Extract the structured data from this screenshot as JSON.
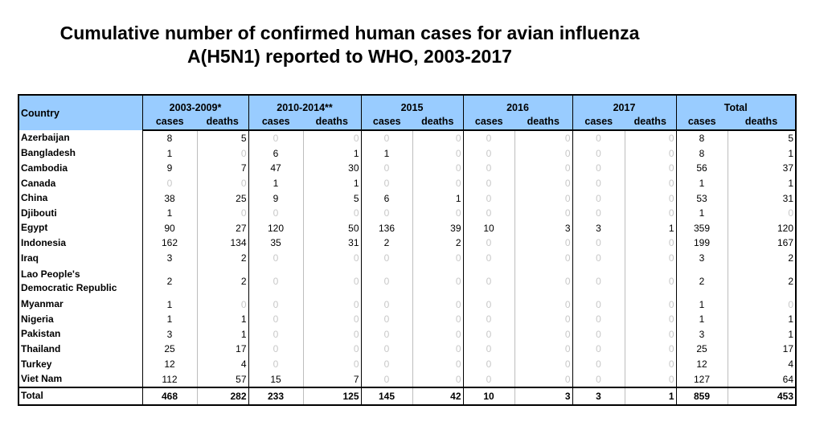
{
  "title_line1": "Cumulative number of confirmed human cases for avian influenza",
  "title_line2": "A(H5N1) reported to WHO, 2003-2017",
  "header": {
    "country": "Country",
    "periods": [
      "2003-2009*",
      "2010-2014**",
      "2015",
      "2016",
      "2017",
      "Total"
    ],
    "cases": "cases",
    "deaths": "deaths"
  },
  "rows": [
    {
      "country": "Azerbaijan",
      "values": [
        8,
        5,
        0,
        0,
        0,
        0,
        0,
        0,
        0,
        0,
        8,
        5
      ]
    },
    {
      "country": "Bangladesh",
      "values": [
        1,
        0,
        6,
        1,
        1,
        0,
        0,
        0,
        0,
        0,
        8,
        1
      ]
    },
    {
      "country": "Cambodia",
      "values": [
        9,
        7,
        47,
        30,
        0,
        0,
        0,
        0,
        0,
        0,
        56,
        37
      ]
    },
    {
      "country": "Canada",
      "values": [
        0,
        0,
        1,
        1,
        0,
        0,
        0,
        0,
        0,
        0,
        1,
        1
      ]
    },
    {
      "country": "China",
      "values": [
        38,
        25,
        9,
        5,
        6,
        1,
        0,
        0,
        0,
        0,
        53,
        31
      ]
    },
    {
      "country": "Djibouti",
      "values": [
        1,
        0,
        0,
        0,
        0,
        0,
        0,
        0,
        0,
        0,
        1,
        0
      ]
    },
    {
      "country": "Egypt",
      "values": [
        90,
        27,
        120,
        50,
        136,
        39,
        10,
        3,
        3,
        1,
        359,
        120
      ]
    },
    {
      "country": "Indonesia",
      "values": [
        162,
        134,
        35,
        31,
        2,
        2,
        0,
        0,
        0,
        0,
        199,
        167
      ]
    },
    {
      "country": "Iraq",
      "values": [
        3,
        2,
        0,
        0,
        0,
        0,
        0,
        0,
        0,
        0,
        3,
        2
      ]
    },
    {
      "country": "Lao People's\nDemocratic Republic",
      "values": [
        2,
        2,
        0,
        0,
        0,
        0,
        0,
        0,
        0,
        0,
        2,
        2
      ]
    },
    {
      "country": "Myanmar",
      "values": [
        1,
        0,
        0,
        0,
        0,
        0,
        0,
        0,
        0,
        0,
        1,
        0
      ]
    },
    {
      "country": "Nigeria",
      "values": [
        1,
        1,
        0,
        0,
        0,
        0,
        0,
        0,
        0,
        0,
        1,
        1
      ]
    },
    {
      "country": "Pakistan",
      "values": [
        3,
        1,
        0,
        0,
        0,
        0,
        0,
        0,
        0,
        0,
        3,
        1
      ]
    },
    {
      "country": "Thailand",
      "values": [
        25,
        17,
        0,
        0,
        0,
        0,
        0,
        0,
        0,
        0,
        25,
        17
      ]
    },
    {
      "country": "Turkey",
      "values": [
        12,
        4,
        0,
        0,
        0,
        0,
        0,
        0,
        0,
        0,
        12,
        4
      ]
    },
    {
      "country": "Viet Nam",
      "values": [
        112,
        57,
        15,
        7,
        0,
        0,
        0,
        0,
        0,
        0,
        127,
        64
      ]
    }
  ],
  "total": {
    "country": "Total",
    "values": [
      468,
      282,
      233,
      125,
      145,
      42,
      10,
      3,
      3,
      1,
      859,
      453
    ]
  }
}
